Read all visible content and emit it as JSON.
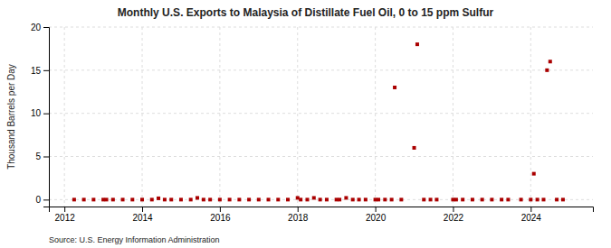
{
  "chart_data": {
    "type": "scatter",
    "title": "Monthly U.S. Exports to Malaysia of Distillate Fuel Oil, 0 to 15 ppm Sulfur",
    "ylabel": "Thousand Barrels per Day",
    "annotations": [
      "Source: U.S. Energy Information Administration"
    ],
    "color": "#aa0000",
    "marker": "square",
    "grid": true,
    "xlim": [
      2011.6,
      2025.6
    ],
    "ylim": [
      -0.8,
      20
    ],
    "xticks": [
      2012,
      2014,
      2016,
      2018,
      2020,
      2022,
      2024
    ],
    "yticks": [
      0,
      5,
      10,
      15,
      20
    ],
    "x": [
      2012.25,
      2012.5,
      2012.75,
      2013.0,
      2013.08,
      2013.25,
      2013.5,
      2013.75,
      2014.0,
      2014.25,
      2014.42,
      2014.58,
      2014.75,
      2015.0,
      2015.25,
      2015.42,
      2015.58,
      2015.75,
      2016.0,
      2016.25,
      2016.5,
      2016.75,
      2017.0,
      2017.25,
      2017.5,
      2017.75,
      2018.0,
      2018.08,
      2018.25,
      2018.42,
      2018.58,
      2018.75,
      2019.0,
      2019.08,
      2019.25,
      2019.42,
      2019.58,
      2019.75,
      2020.0,
      2020.08,
      2020.25,
      2020.42,
      2020.5,
      2020.67,
      2021.0,
      2021.08,
      2021.25,
      2021.42,
      2021.58,
      2022.0,
      2022.08,
      2022.25,
      2022.5,
      2022.75,
      2023.0,
      2023.25,
      2023.42,
      2023.75,
      2024.0,
      2024.08,
      2024.17,
      2024.33,
      2024.42,
      2024.5,
      2024.67,
      2024.83
    ],
    "values": [
      0.0,
      0.0,
      0.0,
      0.0,
      0.0,
      0.0,
      0.0,
      0.0,
      0.0,
      0.0,
      0.15,
      0.0,
      0.0,
      0.0,
      0.0,
      0.2,
      0.0,
      0.0,
      0.0,
      0.0,
      0.0,
      0.0,
      0.0,
      0.0,
      0.0,
      0.0,
      0.2,
      0.0,
      0.0,
      0.2,
      0.0,
      0.0,
      0.0,
      0.0,
      0.2,
      0.0,
      0.0,
      0.0,
      0.0,
      0.0,
      0.0,
      0.0,
      13.0,
      0.0,
      6.0,
      18.0,
      0.0,
      0.0,
      0.0,
      0.0,
      0.0,
      0.0,
      0.0,
      0.0,
      0.0,
      0.0,
      0.0,
      0.0,
      0.0,
      3.0,
      0.0,
      0.0,
      15.0,
      16.0,
      0.0,
      0.0
    ]
  }
}
